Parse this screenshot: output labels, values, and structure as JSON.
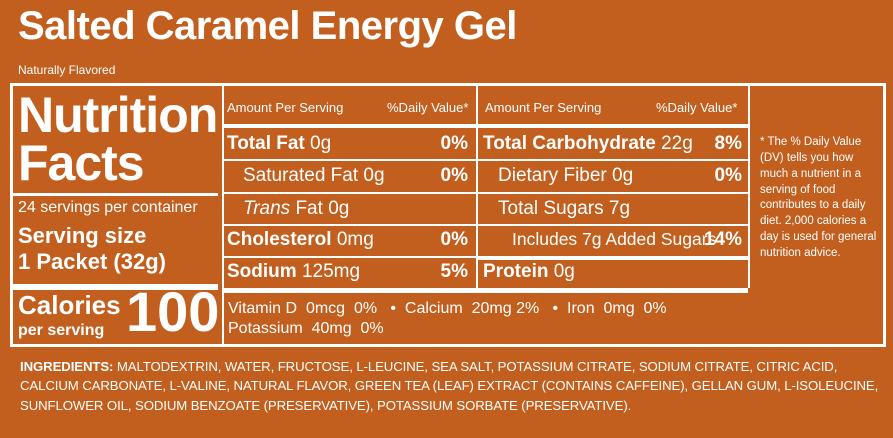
{
  "product": {
    "title": "Salted Caramel Energy Gel",
    "subtitle": "Naturally Flavored"
  },
  "facts": {
    "heading_line1": "Nutrition",
    "heading_line2": "Facts",
    "servings_per_container": "24 servings per container",
    "serving_size_label": "Serving size",
    "serving_size_value": "1 Packet (32g)",
    "calories_label": "Calories",
    "calories_per_serving": "per serving",
    "calories_value": "100"
  },
  "left_table": {
    "header_amount": "Amount Per Serving",
    "header_dv": "%Daily Value*",
    "rows": [
      {
        "label": "Total Fat",
        "amount": "0g",
        "dv": "0%"
      },
      {
        "label": "Saturated Fat",
        "amount": "0g",
        "dv": "0%"
      },
      {
        "label": "Trans",
        "label_suffix": "Fat",
        "amount": "0g",
        "dv": ""
      },
      {
        "label": "Cholesterol",
        "amount": "0mg",
        "dv": "0%"
      },
      {
        "label": "Sodium",
        "amount": "125mg",
        "dv": "5%"
      }
    ]
  },
  "right_table": {
    "header_amount": "Amount Per Serving",
    "header_dv": "%Daily Value*",
    "rows": [
      {
        "label": "Total Carbohydrate",
        "amount": "22g",
        "dv": "8%"
      },
      {
        "label": "Dietary Fiber",
        "amount": "0g",
        "dv": "0%"
      },
      {
        "label": "Total Sugars",
        "amount": "7g",
        "dv": ""
      },
      {
        "label": "Includes 7g Added Sugars",
        "amount": "",
        "dv": "14%"
      },
      {
        "label": "Protein",
        "amount": "0g",
        "dv": ""
      }
    ]
  },
  "vitamins": {
    "line1": "Vitamin D  0mcg  0%   •  Calcium  20mg 2%   •  Iron  0mg  0%",
    "line2": "Potassium  40mg  0%"
  },
  "footnote": "* The % Daily Value (DV) tells you how much a nutrient in a serving of food contributes to a daily diet. 2,000 calories a day is used for general nutrition advice.",
  "ingredients": {
    "label": "INGREDIENTS:",
    "text": "MALTODEXTRIN, WATER, FRUCTOSE, L-LEUCINE, SEA SALT, POTASSIUM CITRATE, SODIUM CITRATE, CITRIC ACID, CALCIUM CARBONATE, L-VALINE, NATURAL FLAVOR, GREEN TEA (LEAF) EXTRACT (CONTAINS CAFFEINE), GELLAN GUM, L-ISOLEUCINE, SUNFLOWER OIL, SODIUM BENZOATE (PRESERVATIVE), POTASSIUM SORBATE (PRESERVATIVE)."
  },
  "colors": {
    "background": "#c25f1e",
    "text": "#ffffff"
  }
}
